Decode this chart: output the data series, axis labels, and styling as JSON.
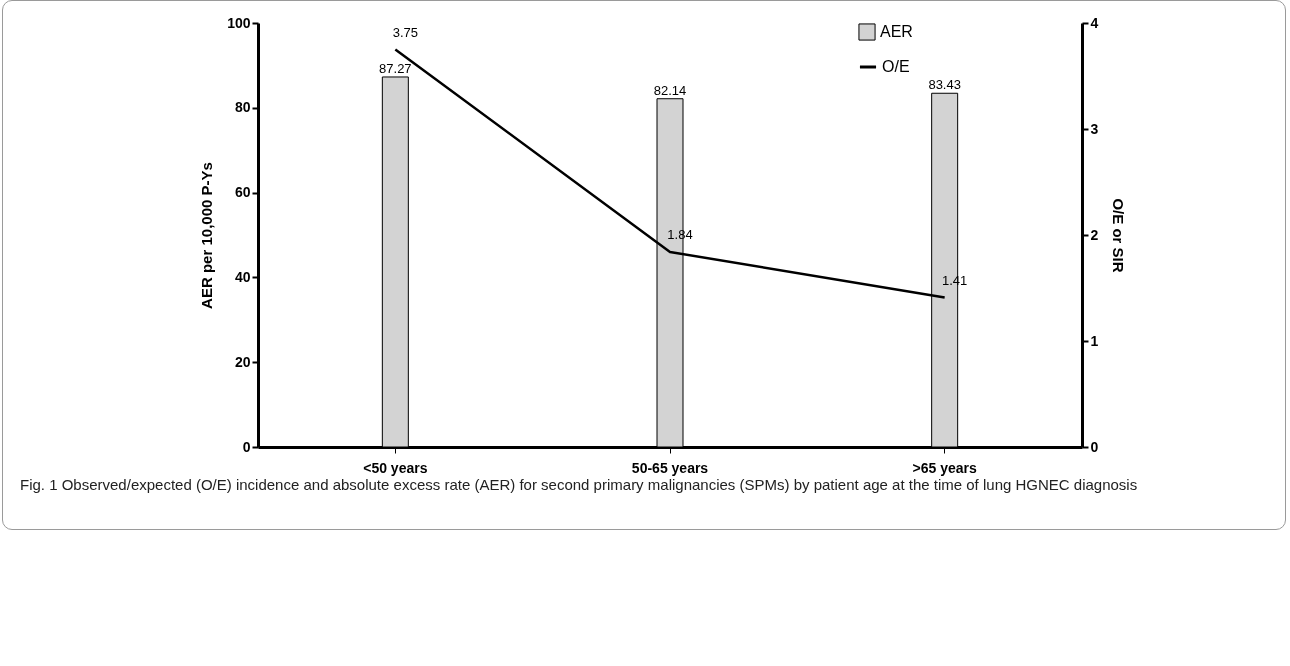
{
  "chart_data": {
    "type": "bar",
    "categories": [
      "<50 years",
      "50-65 years",
      ">65 years"
    ],
    "series": [
      {
        "name": "AER",
        "color": "#d3d3d3",
        "values": [
          87.27,
          82.14,
          83.43
        ]
      },
      {
        "name": "O/E",
        "type": "line",
        "axis": "y2",
        "color": "#000000",
        "values": [
          3.75,
          1.84,
          1.41
        ]
      }
    ],
    "ylabel": "AER per 10,000 P-Ys",
    "y2label": "O/E or SIR",
    "ylim": [
      0,
      100
    ],
    "yticks": [
      0,
      20,
      40,
      60,
      80,
      100
    ],
    "y2lim": [
      0,
      4
    ],
    "y2ticks": [
      0,
      1,
      2,
      3,
      4
    ],
    "data_labels": true,
    "grid": false,
    "legend": "top right",
    "marker": "none",
    "line_style": "solid",
    "annotations": [
      "Fig. 1 Observed/expected (O/E) incidence and absolute excess rate (AER) for second primary malignancies (SPMs) by patient age at the time of lung HGNEC diagnosis"
    ]
  }
}
